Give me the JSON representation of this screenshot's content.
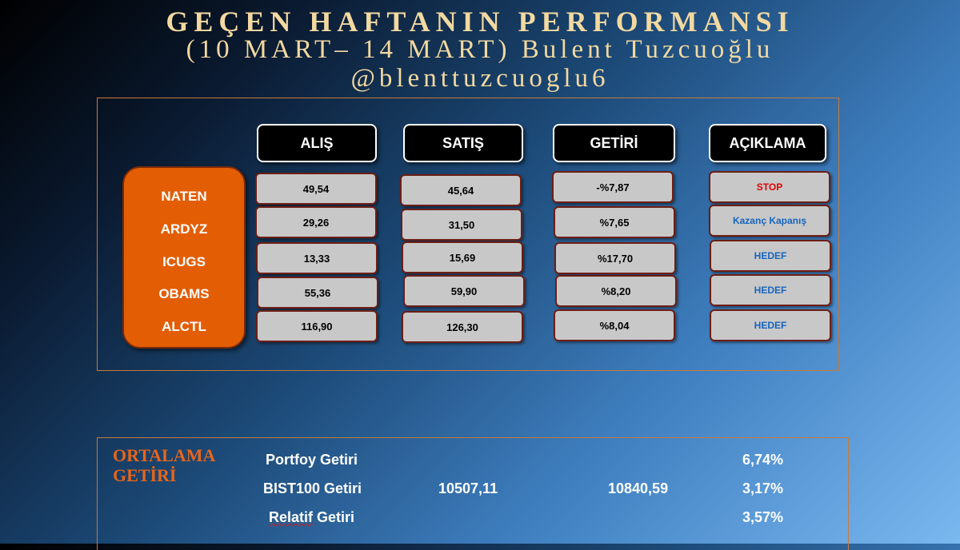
{
  "header": {
    "title": "GEÇEN HAFTANIN PERFORMANSI",
    "subtitle": "(10 MART– 14 MART) Bulent Tuzcuoğlu",
    "handle": "@blenttuzcuoglu6"
  },
  "columns": {
    "alis": "ALIŞ",
    "satis": "SATIŞ",
    "getiri": "GETİRİ",
    "aciklama": "AÇIKLAMA"
  },
  "rows": [
    {
      "ticker": "NATEN",
      "alis": "49,54",
      "satis": "45,64",
      "getiri": "-%7,87",
      "aciklama": "STOP"
    },
    {
      "ticker": "ARDYZ",
      "alis": "29,26",
      "satis": "31,50",
      "getiri": "%7,65",
      "aciklama": "Kazanç Kapanış"
    },
    {
      "ticker": "ICUGS",
      "alis": "13,33",
      "satis": "15,69",
      "getiri": "%17,70",
      "aciklama": "HEDEF"
    },
    {
      "ticker": "OBAMS",
      "alis": "55,36",
      "satis": "59,90",
      "getiri": "%8,20",
      "aciklama": "HEDEF"
    },
    {
      "ticker": "ALCTL",
      "alis": "116,90",
      "satis": "126,30",
      "getiri": "%8,04",
      "aciklama": "HEDEF"
    }
  ],
  "summary": {
    "title_line1": "ORTALAMA",
    "title_line2": "GETİRİ",
    "portfoy_label": "Portfoy Getiri",
    "portfoy_value": "6,74%",
    "bist_label": "BIST100 Getiri",
    "bist_start": "10507,11",
    "bist_end": "10840,59",
    "bist_value": "3,17%",
    "relatif_label_part1": "Relatif",
    "relatif_label_part2": " Getiri",
    "relatif_value": "3,57%"
  },
  "colors": {
    "title": "#f3d9a0",
    "ticker_box": "#e35d05",
    "cell_bg": "#c8c8c8",
    "stop_text": "#e00000",
    "note_text": "#1565c0",
    "frame": "#c87a38"
  }
}
